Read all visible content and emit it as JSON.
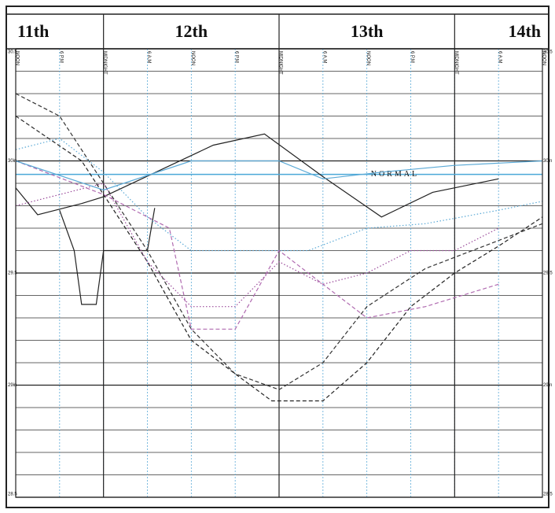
{
  "chart_data": {
    "type": "line",
    "xlim": [
      0,
      72
    ],
    "ylim": [
      28.5,
      30.5
    ],
    "xticks": [
      {
        "value": 0,
        "label": "NOON"
      },
      {
        "value": 6,
        "label": "6 P.M"
      },
      {
        "value": 12,
        "label": "MIDNIGHT"
      },
      {
        "value": 18,
        "label": "6 A.M"
      },
      {
        "value": 24,
        "label": "NOON"
      },
      {
        "value": 30,
        "label": "6 P.M"
      },
      {
        "value": 36,
        "label": "MIDNIGHT"
      },
      {
        "value": 42,
        "label": "6 A.M"
      },
      {
        "value": 48,
        "label": "NOON"
      },
      {
        "value": 54,
        "label": "6 P.M"
      },
      {
        "value": 60,
        "label": "MIDNIGHT"
      },
      {
        "value": 66,
        "label": "6 A.M"
      },
      {
        "value": 72,
        "label": "NOON"
      }
    ],
    "day_labels": [
      {
        "value": 0,
        "label": "11th"
      },
      {
        "value": 24,
        "label": "12th"
      },
      {
        "value": 48,
        "label": "13th"
      },
      {
        "value": 72,
        "label": "14th"
      }
    ],
    "day_lines": [
      12,
      36,
      60
    ],
    "yticks": [
      {
        "value": 30.5,
        "label": "30.5"
      },
      {
        "value": 30,
        "label": "30in"
      },
      {
        "value": 29.5,
        "label": "29.5"
      },
      {
        "value": 29,
        "label": "29in"
      },
      {
        "value": 28.5,
        "label": "28.5"
      }
    ],
    "minor_yticks": [
      30.4,
      30.3,
      30.2,
      30.1,
      29.9,
      29.8,
      29.7,
      29.6,
      29.4,
      29.3,
      29.2,
      29.1,
      28.9,
      28.8,
      28.7,
      28.6
    ],
    "normal": {
      "value": 29.94,
      "label": "NORMAL",
      "color": "#4aa8d8"
    },
    "series": [
      {
        "color": "#222",
        "style": "solid",
        "x": [
          0,
          3,
          9,
          12,
          27,
          34,
          42,
          50,
          57,
          66
        ],
        "values": [
          29.88,
          29.76,
          29.81,
          29.84,
          30.07,
          30.12,
          29.93,
          29.75,
          29.86,
          29.92
        ]
      },
      {
        "color": "#222",
        "style": "solid",
        "x": [
          6,
          8,
          9,
          11,
          12,
          18,
          19
        ],
        "values": [
          29.78,
          29.6,
          29.36,
          29.36,
          29.6,
          29.6,
          29.79
        ]
      },
      {
        "color": "#222",
        "style": "dashed",
        "x": [
          0,
          9,
          12,
          18,
          24,
          30,
          35,
          42,
          48,
          54,
          60,
          66,
          72
        ],
        "values": [
          30.2,
          30.0,
          29.85,
          29.55,
          29.2,
          29.05,
          28.93,
          28.93,
          29.1,
          29.35,
          29.5,
          29.62,
          29.75
        ]
      },
      {
        "color": "#333",
        "style": "dashed",
        "x": [
          0,
          6,
          12,
          18,
          24,
          30,
          36,
          42,
          48,
          56,
          64,
          72
        ],
        "values": [
          30.3,
          30.2,
          29.9,
          29.6,
          29.25,
          29.05,
          28.98,
          29.1,
          29.35,
          29.52,
          29.62,
          29.72
        ]
      },
      {
        "color": "#9a4a9a",
        "style": "dotted",
        "x": [
          0,
          12,
          18,
          24,
          30,
          36,
          42,
          48,
          54,
          60,
          66
        ],
        "values": [
          29.8,
          29.9,
          29.55,
          29.35,
          29.35,
          29.55,
          29.45,
          29.5,
          29.6,
          29.6,
          29.7
        ]
      },
      {
        "color": "#5aa9d6",
        "style": "dotted",
        "x": [
          0,
          6,
          12,
          18,
          24,
          32,
          40,
          48,
          56,
          66,
          72
        ],
        "values": [
          30.05,
          30.1,
          29.95,
          29.75,
          29.6,
          29.6,
          29.6,
          29.7,
          29.72,
          29.78,
          29.82
        ]
      },
      {
        "color": "#b06ab0",
        "style": "dashed",
        "x": [
          0,
          12,
          21,
          24,
          30,
          36,
          42,
          48,
          56,
          66
        ],
        "values": [
          30.0,
          29.85,
          29.7,
          29.25,
          29.25,
          29.6,
          29.45,
          29.3,
          29.35,
          29.45
        ]
      },
      {
        "color": "#5aa9d6",
        "style": "solid",
        "x": [
          0,
          12,
          24,
          36,
          42,
          50,
          60,
          72
        ],
        "values": [
          30.0,
          29.87,
          30.0,
          30.0,
          29.92,
          29.95,
          29.98,
          30.0
        ]
      }
    ]
  }
}
